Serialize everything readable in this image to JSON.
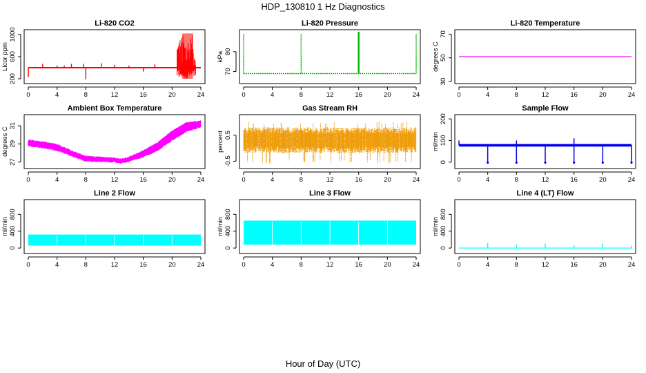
{
  "figure": {
    "title": "HDP_130810  1 Hz Diagnostics",
    "xlabel": "Hour of Day (UTC)"
  },
  "chart_data": [
    {
      "type": "line",
      "title": "Li-820 CO2",
      "ylabel": "Licor ppm",
      "xlim": [
        0,
        24
      ],
      "ylim": [
        150,
        1050
      ],
      "xticks": [
        "0",
        "4",
        "8",
        "12",
        "16",
        "20",
        "24"
      ],
      "yticks": [
        200,
        600,
        1000
      ],
      "yticklabels": [
        "200",
        "600",
        "1000"
      ],
      "color": "#ff0000",
      "mode": "co2",
      "baseline": 400,
      "spikes": [
        {
          "x": 2,
          "y": 470
        },
        {
          "x": 4,
          "y": 440
        },
        {
          "x": 5,
          "y": 440
        },
        {
          "x": 6,
          "y": 470
        },
        {
          "x": 7.7,
          "y": 470
        },
        {
          "x": 8,
          "y": 190
        },
        {
          "x": 10.2,
          "y": 480
        },
        {
          "x": 12,
          "y": 450
        },
        {
          "x": 14,
          "y": 440
        },
        {
          "x": 16,
          "y": 330
        },
        {
          "x": 17.6,
          "y": 460
        }
      ],
      "burst": {
        "x_start": 20.7,
        "x_end": 23.3,
        "ymin": 200,
        "ymax": 1000
      }
    },
    {
      "type": "line",
      "title": "Li-820 Pressure",
      "ylabel": "kPa",
      "xlim": [
        0,
        24
      ],
      "ylim": [
        65,
        90
      ],
      "xticks": [
        "0",
        "4",
        "8",
        "12",
        "16",
        "20",
        "24"
      ],
      "yticks": [
        70,
        80
      ],
      "yticklabels": [
        "70",
        "80"
      ],
      "color": "#00bb00",
      "mode": "pressure",
      "baseline": 69,
      "spikes_at": [
        0,
        8,
        16,
        24
      ],
      "spike_top": 89
    },
    {
      "type": "line",
      "title": "Li-820 Temperature",
      "ylabel": "degrees C",
      "xlim": [
        0,
        24
      ],
      "ylim": [
        30,
        72
      ],
      "xticks": [
        "0",
        "4",
        "8",
        "12",
        "16",
        "20",
        "24"
      ],
      "yticks": [
        30,
        50,
        70
      ],
      "yticklabels": [
        "30",
        "50",
        "70"
      ],
      "color": "#ff00ff",
      "mode": "flat",
      "value": 51
    },
    {
      "type": "line",
      "title": "Ambient Box Temperature",
      "ylabel": "degrees C",
      "xlim": [
        0,
        24
      ],
      "ylim": [
        26.5,
        32
      ],
      "xticks": [
        "0",
        "4",
        "8",
        "12",
        "16",
        "20",
        "24"
      ],
      "yticks": [
        27,
        29,
        31
      ],
      "yticklabels": [
        "27",
        "29",
        "31"
      ],
      "color": "#ff00ff",
      "mode": "band",
      "hours": [
        0,
        2,
        4,
        6,
        8,
        10,
        12,
        13,
        14,
        16,
        18,
        20,
        22,
        24
      ],
      "low": [
        28.7,
        28.5,
        28.2,
        27.6,
        27.0,
        27.0,
        26.9,
        26.8,
        27.0,
        27.5,
        28.2,
        29.3,
        30.3,
        30.8
      ],
      "high": [
        29.5,
        29.3,
        29.0,
        28.3,
        27.7,
        27.6,
        27.5,
        27.4,
        27.6,
        28.3,
        29.2,
        30.5,
        31.4,
        31.6
      ]
    },
    {
      "type": "line",
      "title": "Gas Stream RH",
      "ylabel": "percent",
      "xlim": [
        0,
        24
      ],
      "ylim": [
        -0.7,
        1.2
      ],
      "xticks": [
        "0",
        "4",
        "8",
        "12",
        "16",
        "20",
        "24"
      ],
      "yticks": [
        -0.5,
        0.5
      ],
      "yticklabels": [
        "-0.5",
        "0.5"
      ],
      "color": "#ee9900",
      "mode": "noise",
      "center": 0.3,
      "spread": 0.45,
      "extreme_low": -0.6,
      "extreme_high": 1.0
    },
    {
      "type": "line",
      "title": "Sample Flow",
      "ylabel": "ml/min",
      "xlim": [
        0,
        24
      ],
      "ylim": [
        -20,
        210
      ],
      "xticks": [
        "0",
        "4",
        "8",
        "12",
        "16",
        "20",
        "24"
      ],
      "yticks": [
        0,
        100,
        200
      ],
      "yticklabels": [
        "0",
        "100",
        "200"
      ],
      "color": "#0000ee",
      "mode": "sampleflow",
      "baseline": 78,
      "dips_at": [
        4,
        8,
        12,
        16,
        20,
        24
      ],
      "dip_value": -2,
      "peaks": [
        {
          "x": 8,
          "y": 100
        },
        {
          "x": 16,
          "y": 110
        },
        {
          "x": 0,
          "y": 100
        }
      ]
    },
    {
      "type": "area",
      "title": "Line 2 Flow",
      "ylabel": "ml/min",
      "xlim": [
        0,
        24
      ],
      "ylim": [
        -80,
        1100
      ],
      "xticks": [
        "0",
        "4",
        "8",
        "12",
        "16",
        "20",
        "24"
      ],
      "yticks": [
        0,
        400,
        800
      ],
      "yticklabels": [
        "0",
        "400",
        "800"
      ],
      "color": "#00ffff",
      "mode": "block",
      "ymin": 60,
      "ymax": 320,
      "x_start": 0,
      "x_end": 24,
      "gaps_at": [
        4,
        8,
        12,
        16,
        20
      ]
    },
    {
      "type": "area",
      "title": "Line 3 Flow",
      "ylabel": "ml/min",
      "xlim": [
        0,
        24
      ],
      "ylim": [
        -80,
        1100
      ],
      "xticks": [
        "0",
        "4",
        "8",
        "12",
        "16",
        "20",
        "24"
      ],
      "yticks": [
        0,
        400,
        800
      ],
      "yticklabels": [
        "0",
        "400",
        "800"
      ],
      "color": "#00ffff",
      "mode": "block",
      "ymin": 80,
      "ymax": 650,
      "x_start": 0,
      "x_end": 24,
      "gaps_at": [
        4,
        8,
        12,
        16,
        20
      ]
    },
    {
      "type": "line",
      "title": "Line 4 (LT) Flow",
      "ylabel": "ml/min",
      "xlim": [
        0,
        24
      ],
      "ylim": [
        -80,
        1100
      ],
      "xticks": [
        "0",
        "4",
        "8",
        "12",
        "16",
        "20",
        "24"
      ],
      "yticks": [
        0,
        400,
        800
      ],
      "yticklabels": [
        "0",
        "400",
        "800"
      ],
      "color": "#00ffff",
      "mode": "flatspikes",
      "baseline": 0,
      "spikes": [
        {
          "x": 4,
          "y": 120
        },
        {
          "x": 8,
          "y": 80
        },
        {
          "x": 12,
          "y": 110
        },
        {
          "x": 16,
          "y": 70
        },
        {
          "x": 20,
          "y": 110
        },
        {
          "x": 24,
          "y": 60
        }
      ]
    }
  ]
}
